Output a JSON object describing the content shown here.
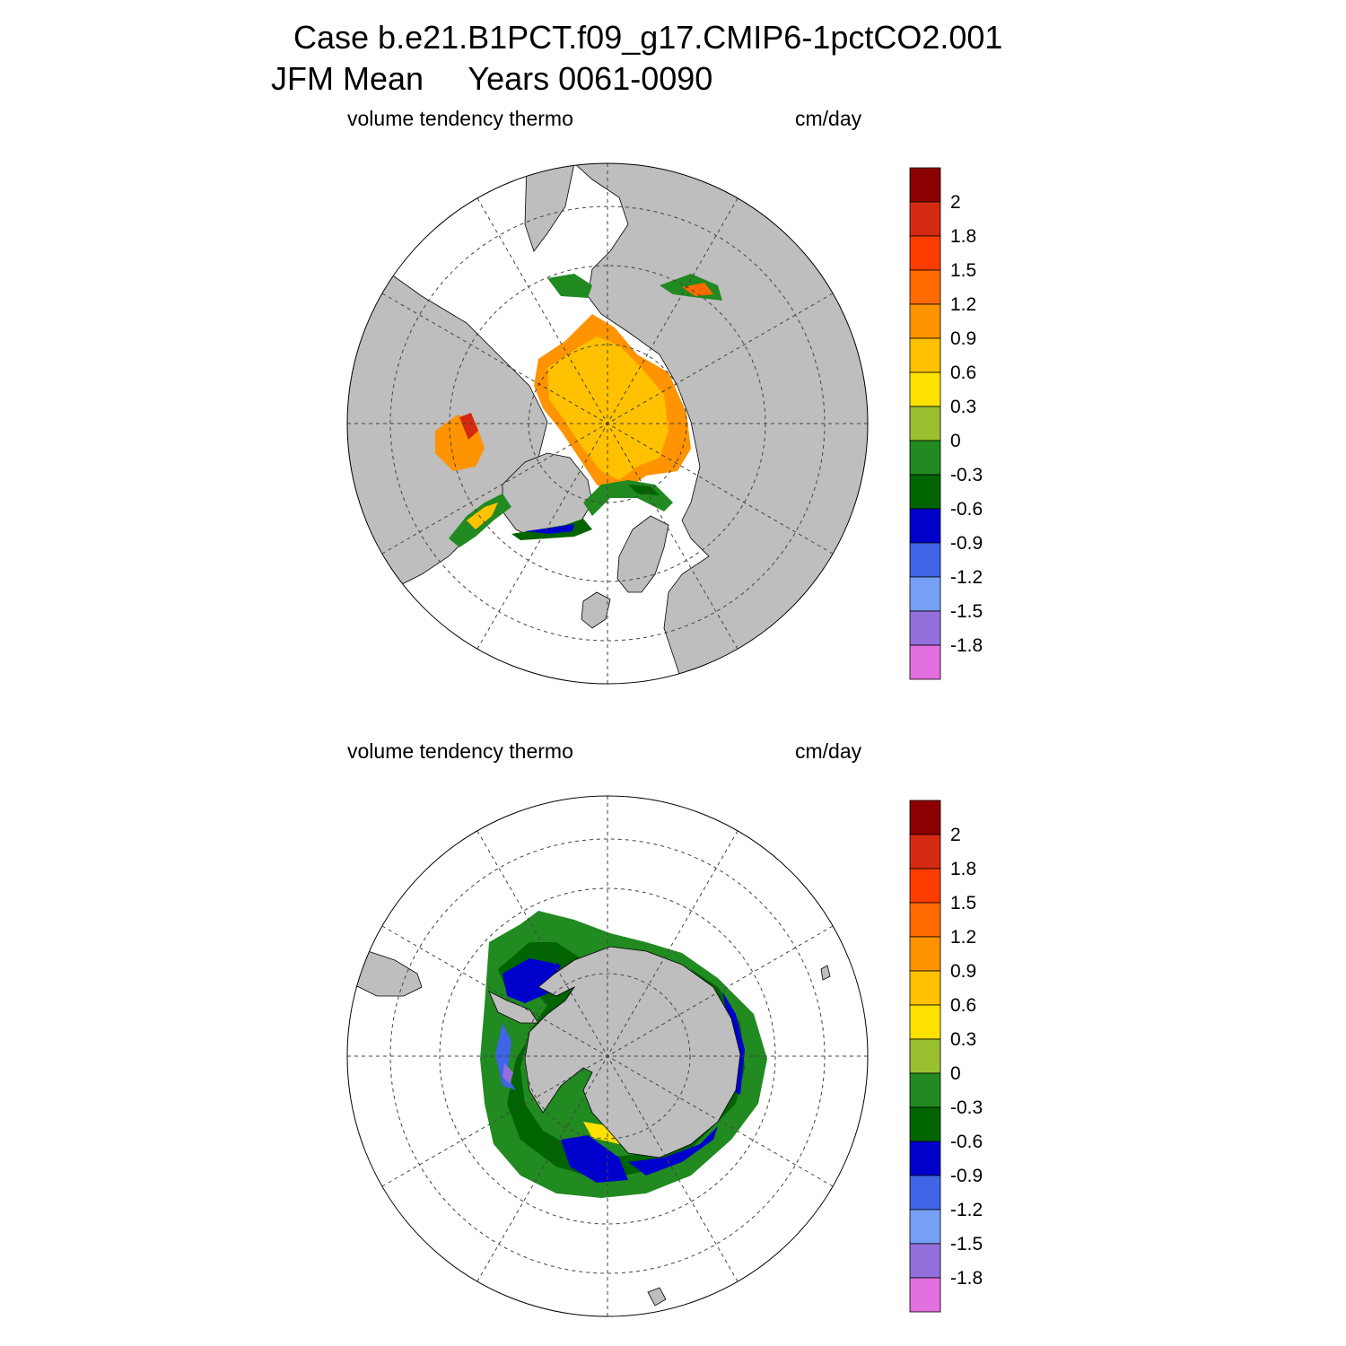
{
  "header": {
    "case_line": "Case b.e21.B1PCT.f09_g17.CMIP6-1pctCO2.001",
    "period_line": "JFM Mean     Years 0061-0090"
  },
  "panels": [
    {
      "id": "north",
      "variable_label": "volume tendency thermo",
      "units_label": "cm/day",
      "hemisphere": "north-polar-stereographic"
    },
    {
      "id": "south",
      "variable_label": "volume tendency thermo",
      "units_label": "cm/day",
      "hemisphere": "south-polar-stereographic"
    }
  ],
  "colorbar": {
    "colors": [
      "#8b0000",
      "#d42a12",
      "#ff3c00",
      "#ff6a00",
      "#ff9300",
      "#ffc100",
      "#ffe100",
      "#9ac02f",
      "#218a21",
      "#006400",
      "#0000cd",
      "#3f64e6",
      "#779ff6",
      "#9370db",
      "#e26fdf"
    ],
    "labels": [
      "2",
      "1.8",
      "1.5",
      "1.2",
      "0.9",
      "0.6",
      "0.3",
      "0",
      "-0.3",
      "-0.6",
      "-0.9",
      "-1.2",
      "-1.5",
      "-1.8"
    ]
  },
  "map_colors": {
    "land": "#bebebe",
    "ocean": "#ffffff"
  }
}
